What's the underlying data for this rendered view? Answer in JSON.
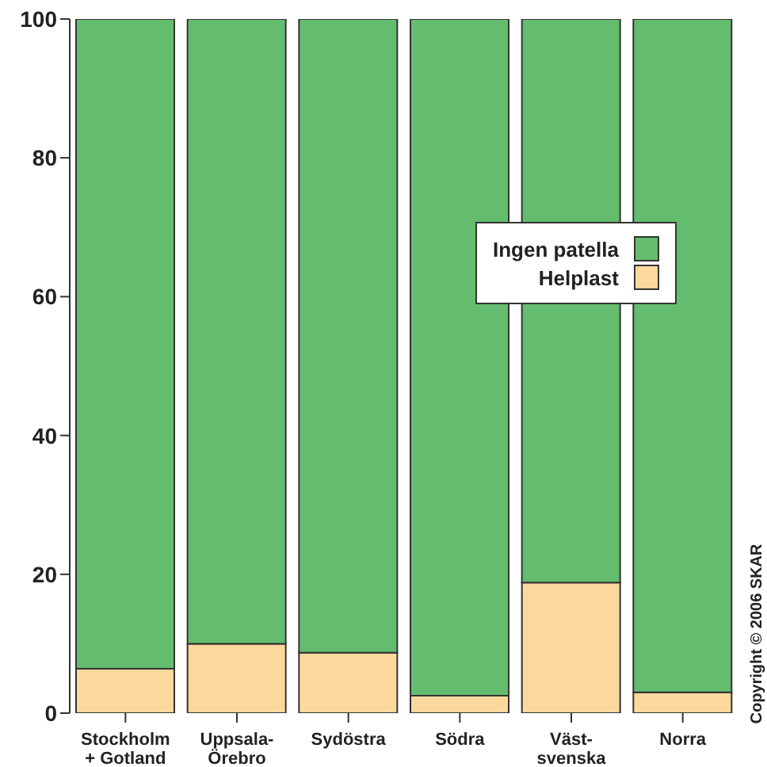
{
  "chart_data": {
    "type": "bar",
    "stacked": true,
    "categories": [
      "Stockholm\n+ Gotland",
      "Uppsala-\nÖrebro",
      "Sydöstra",
      "Södra",
      "Väst-\nsvenska",
      "Norra"
    ],
    "series": [
      {
        "name": "Helplast",
        "color": "#fcd89c",
        "values": [
          6.4,
          10,
          8.7,
          2.5,
          18.8,
          3.0
        ]
      },
      {
        "name": "Ingen patella",
        "color": "#64bd6e",
        "values": [
          93.6,
          90,
          91.3,
          97.5,
          81.2,
          97.0
        ]
      }
    ],
    "ylim": [
      0,
      100
    ],
    "yticks": [
      0,
      20,
      40,
      60,
      80,
      100
    ],
    "grid": false,
    "legend": "right",
    "annotations": [
      "Copyright © 2006 SKAR"
    ]
  }
}
